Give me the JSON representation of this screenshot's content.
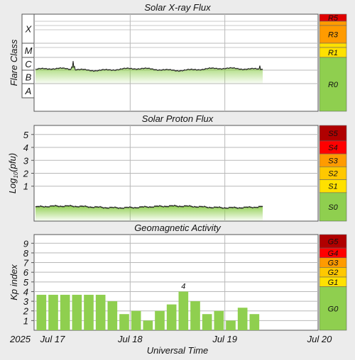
{
  "chart_data": [
    {
      "type": "area",
      "title": "Solar X-ray Flux",
      "ylabel": "Flare Class",
      "yticks": [
        "X",
        "M",
        "C",
        "B",
        "A"
      ],
      "scale_labels": [
        "R5",
        "R3",
        "R1",
        "R0"
      ],
      "scale_colors": [
        "#e00000",
        "#ff9b00",
        "#ffe100",
        "#8fcf4f"
      ],
      "series_color": "#8fcf4f",
      "grid": true
    },
    {
      "type": "area",
      "title": "Solar Proton Flux",
      "ylabel": "Log10(pfu)",
      "yticks": [
        "5",
        "4",
        "3",
        "2",
        "1"
      ],
      "ylim": [
        -1.7,
        5.7
      ],
      "scale_labels": [
        "S5",
        "S4",
        "S3",
        "S2",
        "S1",
        "S0"
      ],
      "scale_colors": [
        "#b00000",
        "#ff0000",
        "#ff9b00",
        "#ffc800",
        "#ffe100",
        "#8fcf4f"
      ],
      "series_color": "#8fcf4f",
      "grid": true
    },
    {
      "type": "bar",
      "title": "Geomagnetic Activity",
      "ylabel": "Kp index",
      "yticks": [
        "9",
        "8",
        "7",
        "6",
        "5",
        "4",
        "3",
        "2",
        "1"
      ],
      "ylim": [
        0,
        9.9
      ],
      "values": [
        3.67,
        3.67,
        3.67,
        3.67,
        3.67,
        3.67,
        3,
        1.67,
        2,
        1,
        2,
        2.67,
        4,
        3,
        1.67,
        2,
        1,
        2.33,
        1.67
      ],
      "bar_annotation": "4",
      "annotated_index": 12,
      "scale_labels": [
        "G5",
        "G4",
        "G3",
        "G2",
        "G1",
        "G0"
      ],
      "scale_colors": [
        "#b00000",
        "#ff0000",
        "#ff9b00",
        "#ffc800",
        "#ffe100",
        "#8fcf4f"
      ],
      "bar_color": "#8fcf4f",
      "grid": true
    }
  ],
  "x_axis": {
    "label": "Universal Time",
    "year": "2025",
    "ticks": [
      "Jul 17",
      "Jul 18",
      "Jul 19",
      "Jul 20"
    ]
  }
}
